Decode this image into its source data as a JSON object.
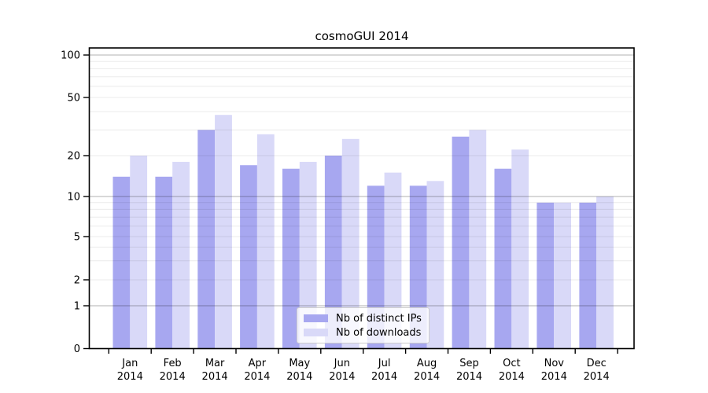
{
  "chart_data": {
    "type": "bar",
    "title": "cosmoGUI 2014",
    "categories": [
      "Jan",
      "Feb",
      "Mar",
      "Apr",
      "May",
      "Jun",
      "Jul",
      "Aug",
      "Sep",
      "Oct",
      "Nov",
      "Dec"
    ],
    "category_year": "2014",
    "series": [
      {
        "name": "Nb of distinct IPs",
        "color": "#a7a7f0",
        "values": [
          14,
          14,
          30,
          17,
          16,
          20,
          12,
          12,
          27,
          16,
          9,
          9
        ]
      },
      {
        "name": "Nb of downloads",
        "color": "#d9d9f8",
        "values": [
          20,
          18,
          38,
          28,
          18,
          26,
          15,
          13,
          30,
          22,
          9,
          10
        ]
      }
    ],
    "y_ticks": [
      0,
      1,
      2,
      5,
      10,
      20,
      50,
      100
    ],
    "y_major_gridlines": [
      1,
      10,
      100
    ],
    "y_minor_gridlines": [
      2,
      3,
      4,
      5,
      6,
      7,
      8,
      9,
      20,
      30,
      40,
      50,
      60,
      70,
      80,
      90
    ],
    "ylim": [
      0,
      112
    ],
    "scale": "log-like (compressed linear segment below 1, zero shown)",
    "grid": "on, drawn over bars",
    "legend_position": "bottom-center inside plot"
  }
}
